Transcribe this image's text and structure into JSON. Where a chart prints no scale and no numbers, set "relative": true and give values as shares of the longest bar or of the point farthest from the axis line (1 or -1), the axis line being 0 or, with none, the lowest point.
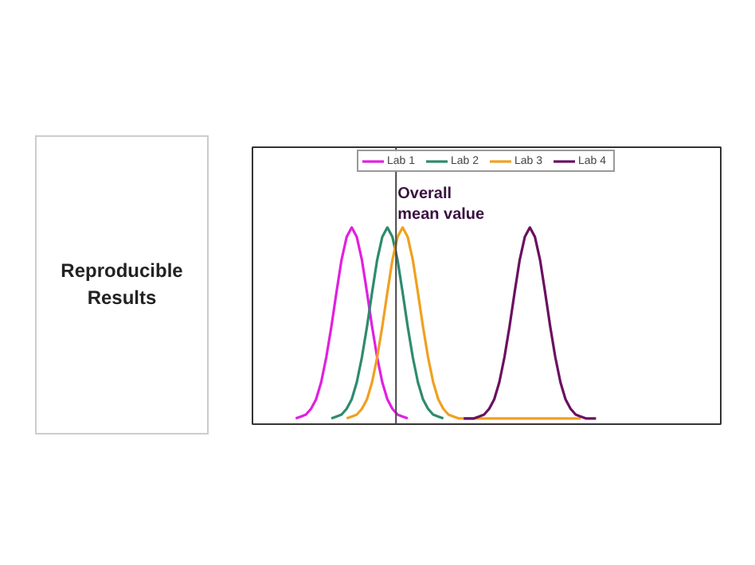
{
  "chart_data": {
    "type": "line",
    "relative": true,
    "legend": "top",
    "grid": false,
    "categories": [
      null,
      null,
      null,
      null,
      null,
      null,
      null,
      null,
      null,
      null,
      null,
      null,
      null,
      null,
      null,
      null,
      null,
      null,
      null,
      null,
      null,
      null,
      null,
      null,
      null,
      null,
      null,
      null,
      null,
      null,
      null,
      null,
      null,
      null,
      null,
      null,
      null,
      null,
      null,
      null,
      null,
      null,
      null,
      null,
      null,
      null,
      null,
      null,
      null,
      null,
      null,
      null,
      null,
      null,
      null,
      null,
      null,
      null,
      null,
      null,
      null,
      null,
      null,
      null,
      null,
      null,
      null,
      null,
      null,
      null,
      null,
      null,
      null,
      null,
      null,
      null,
      null,
      null,
      null,
      null,
      null,
      null,
      null,
      null,
      null,
      null,
      null,
      null,
      null
    ],
    "series": [
      {
        "name": "Lab 1",
        "color": "#e020e0",
        "values": [
          null,
          null,
          null,
          null,
          null,
          null,
          null,
          0,
          0.01,
          0.02,
          0.05,
          0.1,
          0.19,
          0.32,
          0.48,
          0.66,
          0.83,
          0.95,
          1,
          0.95,
          0.83,
          0.66,
          0.48,
          0.32,
          0.19,
          0.1,
          0.05,
          0.02,
          0.01,
          0,
          null,
          null,
          null,
          null,
          null,
          null,
          null,
          null,
          null,
          null,
          null,
          null,
          null,
          null,
          null,
          null,
          null,
          null,
          null,
          null,
          null,
          null,
          null,
          null,
          null,
          null,
          null,
          null,
          null,
          null,
          null,
          null,
          null,
          null,
          null,
          null,
          null,
          null,
          null,
          null,
          null,
          null,
          null,
          null,
          null,
          null,
          null,
          null,
          null,
          null,
          null,
          null,
          null,
          null,
          null,
          null,
          null,
          null,
          null
        ]
      },
      {
        "name": "Lab 2",
        "color": "#2e8b6e",
        "values": [
          null,
          null,
          null,
          null,
          null,
          null,
          null,
          null,
          null,
          null,
          null,
          null,
          null,
          null,
          0,
          0.01,
          0.02,
          0.05,
          0.1,
          0.19,
          0.32,
          0.48,
          0.66,
          0.83,
          0.95,
          1,
          0.95,
          0.83,
          0.66,
          0.48,
          0.32,
          0.19,
          0.1,
          0.05,
          0.02,
          0.01,
          0,
          null,
          null,
          null,
          null,
          null,
          null,
          null,
          null,
          null,
          null,
          null,
          null,
          null,
          null,
          null,
          null,
          null,
          null,
          null,
          null,
          null,
          null,
          null,
          null,
          null,
          null,
          null,
          null,
          null,
          null,
          null,
          null,
          null,
          null,
          null,
          null,
          null,
          null,
          null,
          null,
          null,
          null,
          null,
          null,
          null,
          null,
          null,
          null,
          null,
          null,
          null,
          null
        ]
      },
      {
        "name": "Lab 3",
        "color": "#f0a020",
        "values": [
          null,
          null,
          null,
          null,
          null,
          null,
          null,
          null,
          null,
          null,
          null,
          null,
          null,
          null,
          null,
          null,
          null,
          0,
          0.01,
          0.02,
          0.05,
          0.1,
          0.19,
          0.32,
          0.48,
          0.66,
          0.83,
          0.95,
          1,
          0.95,
          0.83,
          0.66,
          0.48,
          0.32,
          0.19,
          0.1,
          0.05,
          0.02,
          0.01,
          0,
          0,
          0,
          0,
          0,
          0,
          0,
          0,
          0,
          0,
          0,
          0,
          0,
          0,
          0,
          0,
          0,
          0,
          0,
          0,
          0,
          0,
          0,
          0,
          0,
          null,
          null,
          null,
          null,
          null,
          null,
          null,
          null,
          null,
          null,
          null,
          null,
          null,
          null,
          null,
          null,
          null,
          null,
          null,
          null,
          null,
          null,
          null,
          null,
          null
        ]
      },
      {
        "name": "Lab 4",
        "color": "#6a1060",
        "values": [
          null,
          null,
          null,
          null,
          null,
          null,
          null,
          null,
          null,
          null,
          null,
          null,
          null,
          null,
          null,
          null,
          null,
          null,
          null,
          null,
          null,
          null,
          null,
          null,
          null,
          null,
          null,
          null,
          null,
          null,
          null,
          null,
          null,
          null,
          null,
          null,
          null,
          null,
          null,
          null,
          0,
          0,
          0,
          0.01,
          0.02,
          0.05,
          0.1,
          0.19,
          0.32,
          0.48,
          0.66,
          0.83,
          0.95,
          1,
          0.95,
          0.83,
          0.66,
          0.48,
          0.32,
          0.19,
          0.1,
          0.05,
          0.02,
          0.01,
          0,
          0,
          0,
          null,
          null,
          null,
          null,
          null,
          null,
          null,
          null,
          null,
          null,
          null,
          null,
          null,
          null,
          null,
          null,
          null,
          null,
          null,
          null,
          null,
          null
        ]
      }
    ],
    "annotations": [
      "Overall\nmean value",
      "Reproducible\nResults"
    ]
  }
}
